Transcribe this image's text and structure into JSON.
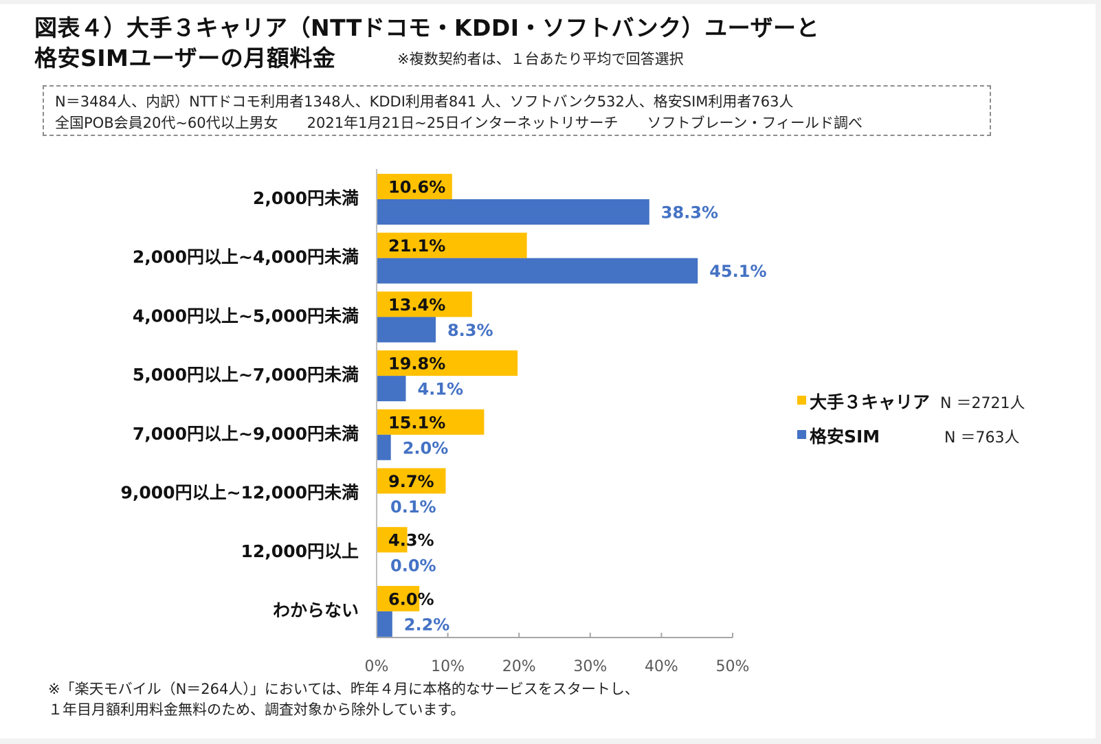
{
  "header": {
    "title_line1": "図表４）大手３キャリア（NTTドコモ・KDDI・ソフトバンク）ユーザーと",
    "title_line2": "格安SIMユーザーの月額料金",
    "note": "※複数契約者は、１台あたり平均で回答選択"
  },
  "survey_info": {
    "line1": "N＝3484人、内訳）NTTドコモ利用者1348人、KDDI利用者841 人、ソフトバンク532人、格安SIM利用者763人",
    "line2": "全国POB会員20代~60代以上男女　　2021年1月21日~25日インターネットリサーチ　　ソフトブレーン・フィールド調べ"
  },
  "legend": [
    {
      "label": "大手３キャリア",
      "n": "N ＝2721人",
      "color": "#FFC000"
    },
    {
      "label": "格安SIM",
      "n": "N ＝763人",
      "color": "#4472C4"
    }
  ],
  "footer": {
    "line1": "※「楽天モバイル（N＝264人）」においては、昨年４月に本格的なサービスをスタートし、",
    "line2": "１年目月額利用料金無料のため、調査対象から除外しています。"
  },
  "chart_data": {
    "type": "bar",
    "orientation": "horizontal",
    "title": "大手３キャリア（NTTドコモ・KDDI・ソフトバンク）ユーザーと格安SIMユーザーの月額料金",
    "xlabel": "",
    "ylabel": "",
    "xlim": [
      0,
      50
    ],
    "x_ticks": [
      "0%",
      "10%",
      "20%",
      "30%",
      "40%",
      "50%"
    ],
    "grid": false,
    "legend_position": "right",
    "categories": [
      "2,000円未満",
      "2,000円以上~4,000円未満",
      "4,000円以上~5,000円未満",
      "5,000円以上~7,000円未満",
      "7,000円以上~9,000円未満",
      "9,000円以上~12,000円未満",
      "12,000円以上",
      "わからない"
    ],
    "series": [
      {
        "name": "大手３キャリア",
        "color": "#FFC000",
        "label_color": "#111111",
        "values": [
          10.6,
          21.1,
          13.4,
          19.8,
          15.1,
          9.7,
          4.3,
          6.0
        ],
        "labels": [
          "10.6%",
          "21.1%",
          "13.4%",
          "19.8%",
          "15.1%",
          "9.7%",
          "4.3%",
          "6.0%"
        ]
      },
      {
        "name": "格安SIM",
        "color": "#4472C4",
        "label_color": "#4472C4",
        "values": [
          38.3,
          45.1,
          8.3,
          4.1,
          2.0,
          0.1,
          0.0,
          2.2
        ],
        "labels": [
          "38.3%",
          "45.1%",
          "8.3%",
          "4.1%",
          "2.0%",
          "0.1%",
          "0.0%",
          "2.2%"
        ]
      }
    ]
  }
}
